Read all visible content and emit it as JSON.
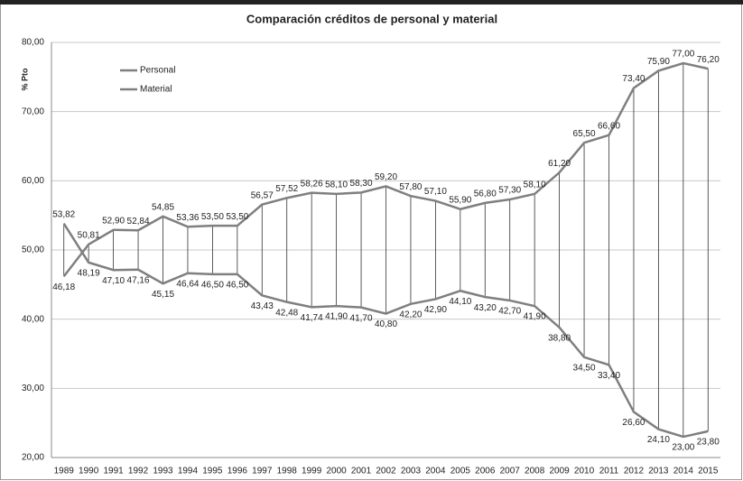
{
  "chart_data": {
    "type": "line",
    "title": "Comparación créditos de personal y material",
    "y_label": "% Pto",
    "categories": [
      "1989",
      "1990",
      "1991",
      "1992",
      "1993",
      "1994",
      "1995",
      "1996",
      "1997",
      "1998",
      "1999",
      "2000",
      "2001",
      "2002",
      "2003",
      "2004",
      "2005",
      "2006",
      "2007",
      "2008",
      "2009",
      "2010",
      "2011",
      "2012",
      "2013",
      "2014",
      "2015"
    ],
    "series": [
      {
        "name": "Personal",
        "color": "#7f7f7f",
        "values": [
          46.18,
          50.81,
          52.9,
          52.84,
          54.85,
          53.36,
          53.5,
          53.5,
          56.57,
          57.52,
          58.26,
          58.1,
          58.3,
          59.2,
          57.8,
          57.1,
          55.9,
          56.8,
          57.3,
          58.1,
          61.2,
          65.5,
          66.6,
          73.4,
          75.9,
          77.0,
          76.2
        ],
        "value_labels": [
          "46,18",
          "50,81",
          "52,90",
          "52,84",
          "54,85",
          "53,36",
          "53,50",
          "53,50",
          "56,57",
          "57,52",
          "58,26",
          "58,10",
          "58,30",
          "59,20",
          "57,80",
          "57,10",
          "55,90",
          "56,80",
          "57,30",
          "58,10",
          "61,20",
          "65,50",
          "66,60",
          "73,40",
          "75,90",
          "77,00",
          "76,20"
        ]
      },
      {
        "name": "Material",
        "color": "#7f7f7f",
        "values": [
          53.82,
          48.19,
          47.1,
          47.16,
          45.15,
          46.64,
          46.5,
          46.5,
          43.43,
          42.48,
          41.74,
          41.9,
          41.7,
          40.8,
          42.2,
          42.9,
          44.1,
          43.2,
          42.7,
          41.9,
          38.8,
          34.5,
          33.4,
          26.6,
          24.1,
          23.0,
          23.8
        ],
        "value_labels": [
          "53,82",
          "48,19",
          "47,10",
          "47,16",
          "45,15",
          "46,64",
          "46,50",
          "46,50",
          "43,43",
          "42,48",
          "41,74",
          "41,90",
          "41,70",
          "40,80",
          "42,20",
          "42,90",
          "44,10",
          "43,20",
          "42,70",
          "41,90",
          "38,80",
          "34,50",
          "33,40",
          "26,60",
          "24,10",
          "23,00",
          "23,80"
        ]
      }
    ],
    "ylim": [
      20,
      80
    ],
    "yticks": [
      {
        "value": 20,
        "label": "20,00"
      },
      {
        "value": 30,
        "label": "30,00"
      },
      {
        "value": 40,
        "label": "40,00"
      },
      {
        "value": 50,
        "label": "50,00"
      },
      {
        "value": 60,
        "label": "60,00"
      },
      {
        "value": 70,
        "label": "70,00"
      },
      {
        "value": 80,
        "label": "80,00"
      }
    ],
    "grid": true,
    "legend": "top-left",
    "drop_lines": true
  }
}
